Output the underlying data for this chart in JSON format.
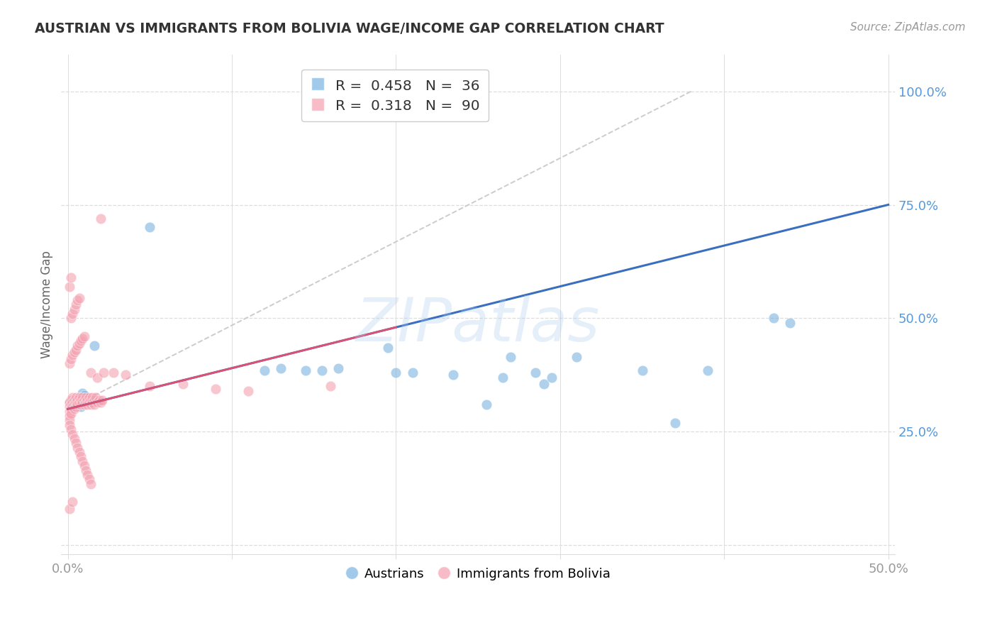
{
  "title": "AUSTRIAN VS IMMIGRANTS FROM BOLIVIA WAGE/INCOME GAP CORRELATION CHART",
  "source": "Source: ZipAtlas.com",
  "ylabel": "Wage/Income Gap",
  "watermark": "ZIPatlas",
  "blue_color": "#7ab3e0",
  "pink_color": "#f4a0b0",
  "blue_line_color": "#3a6fbf",
  "pink_line_color": "#e05070",
  "dash_color": "#cccccc",
  "grid_color": "#dddddd",
  "right_tick_color": "#5599dd",
  "title_color": "#333333",
  "source_color": "#999999",
  "ylabel_color": "#666666",
  "xtick_color": "#999999",
  "legend_edge_color": "#cccccc",
  "legend_R_color": "#3a6fbf",
  "legend_N_color": "#336699",
  "legend_pink_R_color": "#e05070",
  "legend_pink_N_color": "#cc3355",
  "blue_R": "0.458",
  "blue_N": "36",
  "pink_R": "0.318",
  "pink_N": "90",
  "xlim": [
    -0.004,
    0.504
  ],
  "ylim": [
    -0.02,
    1.08
  ],
  "yticks": [
    0.0,
    0.25,
    0.5,
    0.75,
    1.0
  ],
  "yticklabels": [
    "",
    "25.0%",
    "50.0%",
    "75.0%",
    "100.0%"
  ],
  "xticks": [
    0.0,
    0.1,
    0.2,
    0.3,
    0.4,
    0.5
  ],
  "xticklabels_show": [
    "0.0%",
    "50.0%"
  ],
  "blue_line_x": [
    0.0,
    0.5
  ],
  "blue_line_y": [
    0.3,
    0.75
  ],
  "pink_line_x": [
    0.0,
    0.2
  ],
  "pink_line_y": [
    0.3,
    0.48
  ],
  "dash_line_x": [
    0.0,
    0.38
  ],
  "dash_line_y": [
    0.3,
    1.0
  ],
  "aus_x": [
    0.001,
    0.002,
    0.003,
    0.004,
    0.005,
    0.006,
    0.007,
    0.008,
    0.009,
    0.01,
    0.011,
    0.012,
    0.013,
    0.016,
    0.05,
    0.12,
    0.13,
    0.145,
    0.155,
    0.165,
    0.195,
    0.2,
    0.21,
    0.235,
    0.255,
    0.265,
    0.285,
    0.29,
    0.295,
    0.35,
    0.37,
    0.39,
    0.44,
    0.27,
    0.31,
    0.43
  ],
  "aus_y": [
    0.315,
    0.31,
    0.315,
    0.305,
    0.31,
    0.305,
    0.31,
    0.305,
    0.335,
    0.33,
    0.32,
    0.315,
    0.315,
    0.44,
    0.7,
    0.385,
    0.39,
    0.385,
    0.385,
    0.39,
    0.435,
    0.38,
    0.38,
    0.375,
    0.31,
    0.37,
    0.38,
    0.355,
    0.37,
    0.385,
    0.27,
    0.385,
    0.49,
    0.415,
    0.415,
    0.5
  ],
  "bol_x": [
    0.001,
    0.001,
    0.001,
    0.001,
    0.001,
    0.002,
    0.002,
    0.002,
    0.002,
    0.003,
    0.003,
    0.003,
    0.004,
    0.004,
    0.004,
    0.005,
    0.005,
    0.005,
    0.006,
    0.006,
    0.007,
    0.007,
    0.008,
    0.008,
    0.009,
    0.009,
    0.01,
    0.01,
    0.011,
    0.011,
    0.012,
    0.012,
    0.013,
    0.013,
    0.014,
    0.014,
    0.015,
    0.015,
    0.016,
    0.016,
    0.017,
    0.018,
    0.019,
    0.02,
    0.021,
    0.001,
    0.002,
    0.003,
    0.004,
    0.005,
    0.006,
    0.007,
    0.008,
    0.009,
    0.01,
    0.011,
    0.012,
    0.013,
    0.014,
    0.001,
    0.002,
    0.003,
    0.004,
    0.005,
    0.006,
    0.007,
    0.008,
    0.009,
    0.01,
    0.002,
    0.003,
    0.004,
    0.005,
    0.006,
    0.007,
    0.001,
    0.002,
    0.014,
    0.018,
    0.022,
    0.028,
    0.035,
    0.05,
    0.07,
    0.09,
    0.11,
    0.16,
    0.02,
    0.001,
    0.003
  ],
  "bol_y": [
    0.315,
    0.305,
    0.295,
    0.285,
    0.275,
    0.32,
    0.31,
    0.3,
    0.29,
    0.325,
    0.315,
    0.305,
    0.32,
    0.31,
    0.3,
    0.325,
    0.315,
    0.305,
    0.32,
    0.31,
    0.325,
    0.315,
    0.32,
    0.31,
    0.325,
    0.315,
    0.32,
    0.31,
    0.325,
    0.315,
    0.32,
    0.31,
    0.325,
    0.315,
    0.32,
    0.31,
    0.325,
    0.315,
    0.32,
    0.31,
    0.325,
    0.315,
    0.32,
    0.315,
    0.32,
    0.265,
    0.255,
    0.245,
    0.235,
    0.225,
    0.215,
    0.205,
    0.195,
    0.185,
    0.175,
    0.165,
    0.155,
    0.145,
    0.135,
    0.4,
    0.41,
    0.42,
    0.425,
    0.43,
    0.44,
    0.445,
    0.45,
    0.455,
    0.46,
    0.5,
    0.51,
    0.52,
    0.53,
    0.54,
    0.545,
    0.57,
    0.59,
    0.38,
    0.37,
    0.38,
    0.38,
    0.375,
    0.35,
    0.355,
    0.345,
    0.34,
    0.35,
    0.72,
    0.08,
    0.095
  ]
}
